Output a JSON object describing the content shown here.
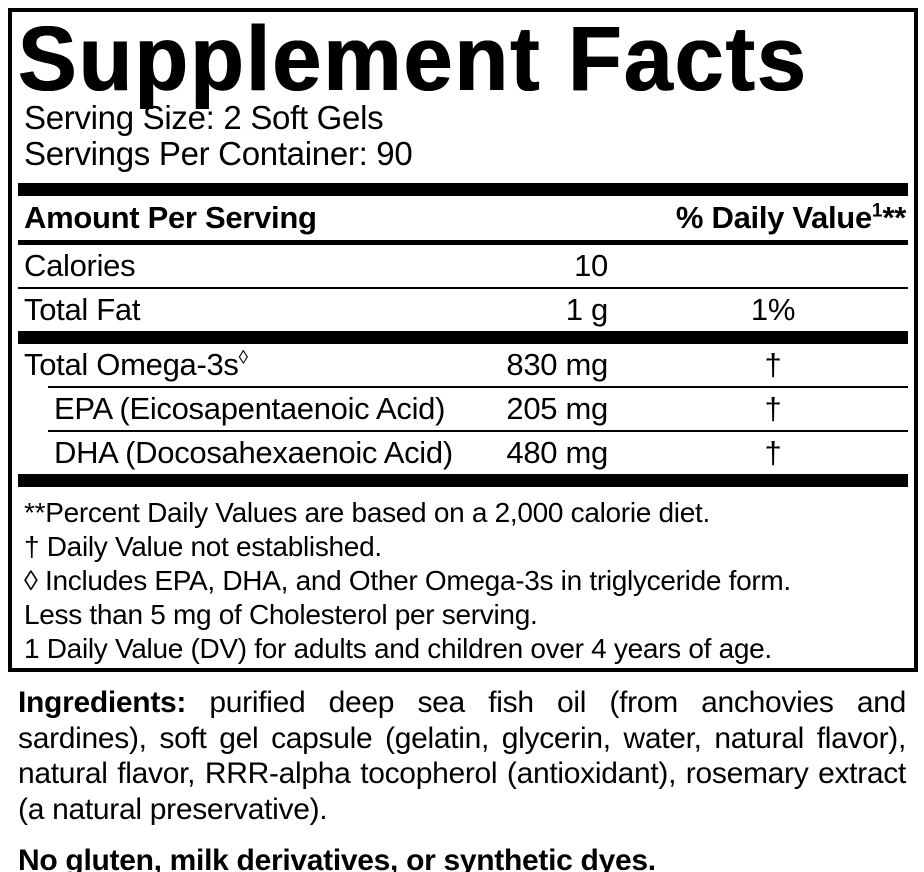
{
  "colors": {
    "text": "#000000",
    "background": "#ffffff",
    "border": "#000000"
  },
  "label": {
    "title": "Supplement Facts",
    "serving_size": "Serving Size: 2 Soft Gels",
    "servings_per_container": "Servings Per Container: 90",
    "header": {
      "amount": "Amount Per Serving",
      "daily_value": "% Daily Value",
      "daily_value_sup": "1",
      "daily_value_stars": "**"
    },
    "rows": [
      {
        "name": "Calories",
        "amount": "10",
        "dv": ""
      },
      {
        "name": "Total Fat",
        "amount": "1 g",
        "dv": "1%"
      },
      {
        "name": "Total Omega-3s",
        "sup": "◊",
        "amount": "830 mg",
        "dv": "†"
      },
      {
        "name": "EPA (Eicosapentaenoic Acid)",
        "amount": "205 mg",
        "dv": "†"
      },
      {
        "name": "DHA (Docosahexaenoic Acid)",
        "amount": "480 mg",
        "dv": "†"
      }
    ],
    "footnotes": [
      "**Percent Daily Values are based on a 2,000 calorie diet.",
      "† Daily Value not established.",
      "◊ Includes EPA, DHA, and Other Omega-3s in triglyceride form.",
      "Less than 5 mg of Cholesterol per serving.",
      "1 Daily Value (DV) for adults and children over 4 years of age."
    ]
  },
  "ingredients": {
    "label": "Ingredients:",
    "text": " purified deep sea fish oil (from anchovies and sardines), soft gel capsule (gelatin, glycerin, water, natural flavor), natural flavor, RRR-alpha tocopherol (antioxidant), rosemary extract (a natural preservative)."
  },
  "claim": "No gluten, milk derivatives, or synthetic dyes."
}
